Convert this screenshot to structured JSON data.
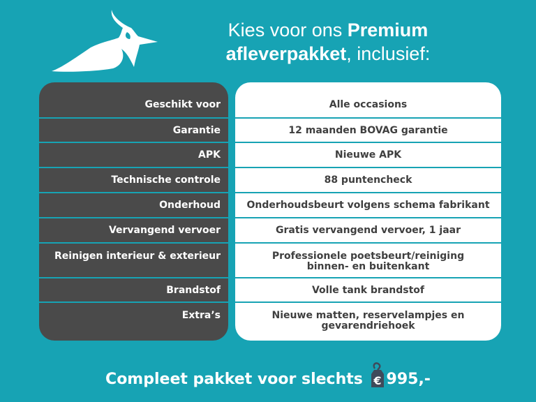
{
  "header": {
    "title_pre": "Kies voor ons ",
    "title_bold1": "Premium",
    "title_bold2": "afleverpakket",
    "title_post": ", inclusief:"
  },
  "rows": [
    {
      "label": "Geschikt voor",
      "value": "Alle occasions"
    },
    {
      "label": "Garantie",
      "value": "12 maanden BOVAG garantie"
    },
    {
      "label": "APK",
      "value": "Nieuwe APK"
    },
    {
      "label": "Technische controle",
      "value": "88 puntencheck"
    },
    {
      "label": "Onderhoud",
      "value": "Onderhoudsbeurt volgens schema fabrikant"
    },
    {
      "label": "Vervangend vervoer",
      "value": "Gratis vervangend vervoer, 1 jaar"
    },
    {
      "label": "Reinigen interieur & exterieur",
      "value": "Professionele poetsbeurt/reiniging",
      "value2": "binnen- en buitenkant"
    },
    {
      "label": "Brandstof",
      "value": "Volle tank brandstof"
    },
    {
      "label": "Extra’s",
      "value": "Nieuwe matten, reservelampjes en",
      "value2": "gevarendriehoek"
    }
  ],
  "footer": {
    "text": "Compleet pakket voor slechts",
    "currency": "€",
    "price": "995,-"
  },
  "colors": {
    "background": "#17a3b4",
    "dark_panel": "#4a4a4a",
    "white_panel": "#ffffff"
  }
}
